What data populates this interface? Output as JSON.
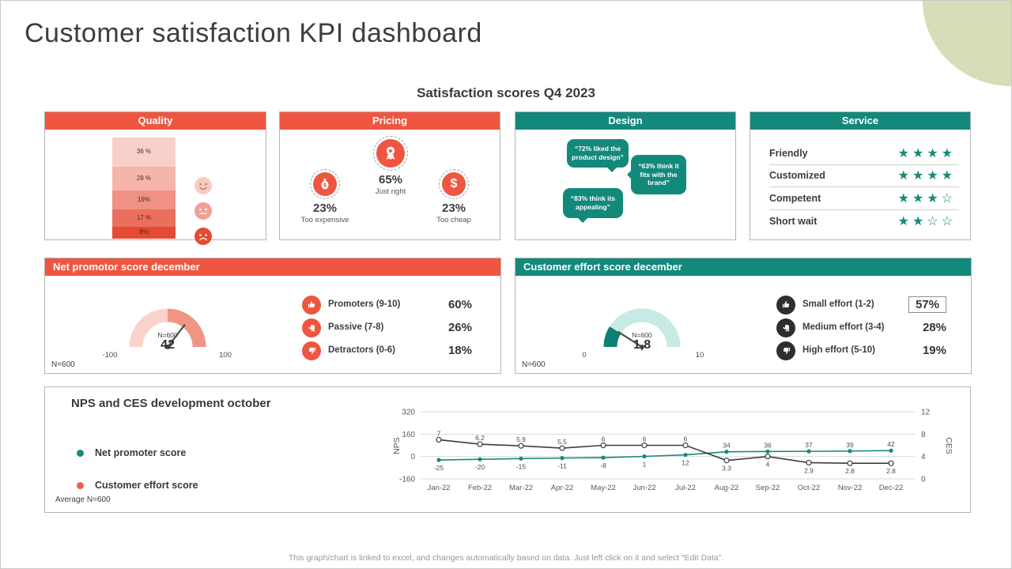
{
  "slide": {
    "title": "Customer satisfaction KPI dashboard",
    "subtitle": "Satisfaction scores Q4 2023",
    "footer": "This graph/chart is linked to excel, and changes automatically based on data. Just left click on it and select “Edit Data”."
  },
  "colors": {
    "accent_red": "#EE5641",
    "accent_teal": "#13897C",
    "corner_decoration": "#D9DCB9"
  },
  "quality": {
    "header": "Quality",
    "segments": [
      {
        "label": "36 %",
        "value": 36,
        "color": "#F8D0CA"
      },
      {
        "label": "28 %",
        "value": 28,
        "color": "#F5B5AB"
      },
      {
        "label": "19%",
        "value": 19,
        "color": "#EF9184"
      },
      {
        "label": "17 %",
        "value": 17,
        "color": "#EA6F5D"
      },
      {
        "label": "8%",
        "value": 8,
        "color": "#E54A33"
      }
    ],
    "faces": [
      "happy",
      "neutral",
      "angry"
    ]
  },
  "pricing": {
    "header": "Pricing",
    "items": [
      {
        "icon": "money-bag",
        "value": "23%",
        "label": "Too expensive"
      },
      {
        "icon": "award-medal",
        "value": "65%",
        "label": "Just right"
      },
      {
        "icon": "dollar",
        "value": "23%",
        "label": "Too cheap"
      }
    ]
  },
  "design": {
    "header": "Design",
    "bubbles": [
      "“72% liked the product design”",
      "“63% think it fits with the brand”",
      "“83% think its appealing”"
    ]
  },
  "service": {
    "header": "Service",
    "stars_total": 4,
    "rows": [
      {
        "label": "Friendly",
        "stars": 4
      },
      {
        "label": "Customized",
        "stars": 4
      },
      {
        "label": "Competent",
        "stars": 3
      },
      {
        "label": "Short wait",
        "stars": 2
      }
    ]
  },
  "nps": {
    "header": "Net promotor score december",
    "sample": "N=600",
    "gauge": {
      "min": -100,
      "max": 100,
      "value": 42,
      "min_label": "-100",
      "max_label": "100",
      "value_label": "42",
      "n": "N=600",
      "segments": [
        {
          "from": 0,
          "to": 0.5,
          "color": "#F8D2CB"
        },
        {
          "from": 0.5,
          "to": 1,
          "color": "#F09585"
        }
      ]
    },
    "rows": [
      {
        "icon": "thumb-up",
        "label": "Promoters (9-10)",
        "value": "60%"
      },
      {
        "icon": "thumb-side",
        "label": "Passive (7-8)",
        "value": "26%"
      },
      {
        "icon": "thumb-down",
        "label": "Detractors (0-6)",
        "value": "18%"
      }
    ]
  },
  "ces": {
    "header": "Customer effort score december",
    "sample": "N=600",
    "gauge": {
      "min": 0,
      "max": 10,
      "value": 1.8,
      "min_label": "0",
      "max_label": "10",
      "value_label": "1,8",
      "n": "N=600",
      "segments": [
        {
          "from": 0,
          "to": 0.18,
          "color": "#0E7F72"
        },
        {
          "from": 0.18,
          "to": 1,
          "color": "#C7EAE4"
        }
      ]
    },
    "rows": [
      {
        "icon": "thumb-up",
        "label": "Small effort (1-2)",
        "value": "57%",
        "boxed": true
      },
      {
        "icon": "thumb-side",
        "label": "Medium effort (3-4)",
        "value": "28%"
      },
      {
        "icon": "thumb-down",
        "label": "High effort (5-10)",
        "value": "19%"
      }
    ]
  },
  "chart_data": {
    "type": "line",
    "title": "NPS and CES development october",
    "note": "Average N=600",
    "legend_position": "left",
    "grid": true,
    "x": [
      "Jan-22",
      "Feb-22",
      "Mar-22",
      "Apr-22",
      "May-22",
      "Jun-22",
      "Jul-22",
      "Aug-22",
      "Sep-22",
      "Oct-22",
      "Nov-22",
      "Dec-22"
    ],
    "left_axis": {
      "label": "NPS",
      "min": -160,
      "max": 320,
      "ticks": [
        320,
        160,
        0,
        -160
      ]
    },
    "right_axis": {
      "label": "CES",
      "min": 0,
      "max": 12,
      "ticks": [
        12,
        8,
        4,
        0
      ]
    },
    "series": [
      {
        "name": "Net promoter score",
        "axis": "left",
        "line_color": "#17897B",
        "dot_color": "#17897B",
        "values": [
          -25,
          -20,
          -15,
          -11,
          -8,
          1,
          12,
          34,
          36,
          37,
          39,
          42
        ],
        "labels": [
          "-25",
          "-20",
          "-15",
          "-11",
          "-8",
          "1",
          "12",
          "34",
          "36",
          "37",
          "39",
          "42"
        ]
      },
      {
        "name": "Customer effort score",
        "axis": "right",
        "line_color": "#3C3C3C",
        "dot_color": "#E8604C",
        "values": [
          7,
          6.2,
          5.9,
          5.5,
          6,
          6,
          6,
          3.3,
          4,
          2.9,
          2.8,
          2.8
        ],
        "labels": [
          "7",
          "6.2",
          "5.9",
          "5.5",
          "6",
          "6",
          "6",
          "3.3",
          "4",
          "2.9",
          "2.8",
          "2.8"
        ]
      }
    ]
  }
}
